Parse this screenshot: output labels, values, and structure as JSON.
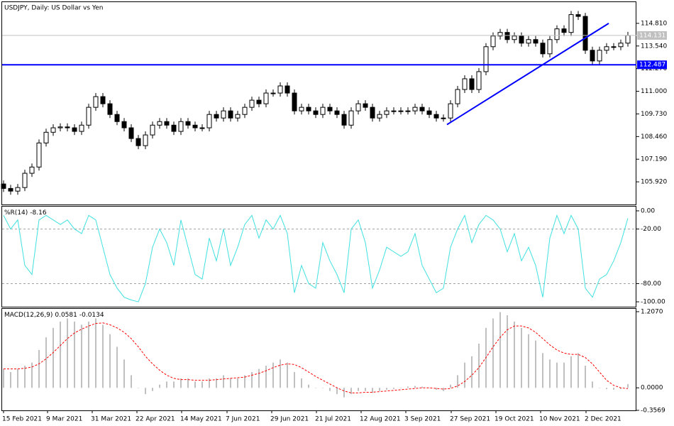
{
  "chart_data": [
    {
      "type": "candlestick",
      "title": "USDJPY, Daily:  US Dollar vs Yen",
      "open": [
        105.8,
        105.55,
        105.4,
        105.6,
        106.4,
        106.75,
        108.1,
        108.7,
        108.95,
        109.0,
        108.95,
        108.75,
        109.1,
        110.1,
        110.7,
        110.3,
        109.7,
        109.3,
        108.95,
        108.35,
        107.95,
        108.55,
        109.1,
        109.3,
        109.1,
        108.75,
        109.3,
        109.1,
        108.95,
        108.95,
        109.7,
        109.5,
        109.9,
        109.5,
        109.7,
        110.1,
        110.5,
        110.3,
        110.9,
        110.9,
        111.3,
        110.9,
        109.9,
        110.1,
        109.9,
        109.7,
        110.1,
        109.9,
        109.7,
        109.1,
        109.9,
        110.3,
        110.1,
        109.5,
        109.7,
        109.9,
        109.9,
        109.9,
        109.9,
        110.1,
        109.9,
        109.7,
        109.5,
        109.5,
        110.3,
        111.1,
        111.7,
        111.1,
        112.1,
        113.5,
        114.1,
        114.3,
        113.9,
        114.1,
        113.7,
        113.9,
        113.7,
        113.1,
        113.9,
        114.5,
        114.3,
        115.3,
        115.2,
        113.3,
        112.7,
        113.3,
        113.5,
        113.5,
        113.7
      ],
      "high": [
        106.0,
        105.75,
        105.8,
        106.6,
        106.95,
        108.3,
        108.9,
        109.15,
        109.2,
        109.2,
        109.15,
        109.3,
        110.3,
        110.9,
        110.9,
        110.5,
        109.9,
        109.5,
        109.15,
        108.55,
        108.75,
        109.3,
        109.5,
        109.5,
        109.3,
        109.5,
        109.5,
        109.3,
        109.15,
        109.9,
        109.9,
        110.1,
        110.1,
        109.9,
        110.3,
        110.7,
        110.7,
        111.1,
        111.1,
        111.5,
        111.5,
        111.1,
        110.3,
        110.3,
        110.1,
        110.3,
        110.3,
        110.1,
        109.9,
        110.1,
        110.5,
        110.5,
        110.3,
        109.9,
        110.1,
        110.1,
        110.1,
        110.1,
        110.3,
        110.3,
        110.1,
        109.9,
        109.7,
        110.5,
        111.3,
        111.9,
        111.9,
        112.3,
        113.7,
        114.3,
        114.5,
        114.5,
        114.3,
        114.3,
        114.1,
        114.1,
        113.9,
        114.1,
        114.7,
        114.7,
        115.5,
        115.5,
        115.4,
        113.5,
        113.5,
        113.7,
        113.7,
        113.9,
        114.33
      ],
      "low": [
        105.35,
        105.2,
        105.2,
        105.4,
        106.2,
        106.55,
        107.9,
        108.5,
        108.75,
        108.75,
        108.55,
        108.55,
        108.9,
        109.9,
        110.1,
        109.5,
        109.1,
        108.75,
        108.15,
        107.75,
        107.75,
        108.35,
        108.9,
        108.9,
        108.55,
        108.55,
        108.9,
        108.75,
        108.75,
        108.75,
        109.3,
        109.3,
        109.3,
        109.3,
        109.5,
        109.9,
        110.1,
        110.1,
        110.7,
        110.7,
        110.7,
        109.7,
        109.7,
        109.7,
        109.5,
        109.5,
        109.7,
        109.5,
        108.9,
        108.9,
        109.7,
        109.9,
        109.3,
        109.3,
        109.5,
        109.7,
        109.7,
        109.7,
        109.7,
        109.7,
        109.5,
        109.3,
        109.3,
        109.3,
        110.1,
        110.9,
        110.9,
        110.9,
        111.9,
        113.3,
        113.9,
        113.7,
        113.7,
        113.5,
        113.5,
        113.5,
        112.9,
        112.9,
        113.7,
        114.1,
        114.1,
        115.0,
        113.1,
        112.5,
        112.5,
        113.1,
        113.3,
        113.3,
        113.5
      ],
      "close": [
        105.55,
        105.4,
        105.6,
        106.4,
        106.75,
        108.1,
        108.7,
        108.95,
        109.0,
        108.95,
        108.75,
        109.1,
        110.1,
        110.7,
        110.3,
        109.7,
        109.3,
        108.95,
        108.35,
        107.95,
        108.55,
        109.1,
        109.3,
        109.1,
        108.75,
        109.3,
        109.1,
        108.95,
        108.95,
        109.7,
        109.5,
        109.9,
        109.5,
        109.7,
        110.1,
        110.5,
        110.3,
        110.9,
        110.9,
        111.3,
        110.9,
        109.9,
        110.1,
        109.9,
        109.7,
        110.1,
        109.9,
        109.7,
        109.1,
        109.9,
        110.3,
        110.1,
        109.5,
        109.7,
        109.9,
        109.9,
        109.9,
        109.9,
        110.1,
        109.9,
        109.7,
        109.5,
        109.5,
        110.3,
        111.1,
        111.7,
        111.1,
        112.1,
        113.5,
        114.1,
        114.3,
        113.9,
        114.1,
        113.7,
        113.9,
        113.7,
        113.1,
        113.9,
        114.5,
        114.3,
        115.3,
        115.2,
        113.3,
        112.7,
        113.3,
        113.5,
        113.5,
        113.7,
        114.13
      ],
      "ylim": [
        104.65,
        116.0
      ],
      "yticks": [
        {
          "value": 105.92,
          "label": "105.920"
        },
        {
          "value": 107.19,
          "label": "107.190"
        },
        {
          "value": 108.46,
          "label": "108.460"
        },
        {
          "value": 109.73,
          "label": "109.730"
        },
        {
          "value": 111.0,
          "label": "111.000"
        },
        {
          "value": 112.27,
          "label": "112.270"
        },
        {
          "value": 113.54,
          "label": "113.540"
        },
        {
          "value": 114.81,
          "label": "114.810"
        }
      ],
      "horizontal_line": {
        "value": 112.487,
        "color": "#0000ff"
      },
      "last_price": {
        "value": 114.131,
        "color": "#c0c0c0"
      },
      "trendline": {
        "from_index": 62.5,
        "to_index": 85.3,
        "from": 109.13,
        "to": 114.81,
        "color": "#0000ff"
      }
    },
    {
      "type": "line",
      "title": "%R(14)",
      "color": "#40e0e0",
      "values": [
        -5,
        -20,
        -10,
        -60,
        -70,
        -10,
        -5,
        -10,
        -15,
        -10,
        -20,
        -25,
        -5,
        -10,
        -40,
        -70,
        -85,
        -95,
        -98,
        -100,
        -80,
        -40,
        -20,
        -35,
        -60,
        -10,
        -40,
        -70,
        -75,
        -30,
        -55,
        -20,
        -60,
        -40,
        -15,
        -5,
        -30,
        -10,
        -20,
        -5,
        -25,
        -90,
        -60,
        -80,
        -85,
        -35,
        -55,
        -70,
        -90,
        -20,
        -10,
        -35,
        -85,
        -65,
        -40,
        -45,
        -50,
        -45,
        -25,
        -60,
        -75,
        -90,
        -85,
        -40,
        -20,
        -5,
        -35,
        -15,
        -5,
        -10,
        -20,
        -45,
        -25,
        -55,
        -40,
        -60,
        -95,
        -30,
        -5,
        -25,
        -5,
        -20,
        -85,
        -95,
        -75,
        -70,
        -55,
        -35,
        -8.16
      ],
      "ylim": [
        -105.4,
        4.65
      ],
      "yticks": [
        {
          "value": 0,
          "label": "0.00"
        },
        {
          "value": -20,
          "label": "-20.00"
        },
        {
          "value": -80,
          "label": "-80.00"
        },
        {
          "value": -100,
          "label": "-100.00"
        }
      ],
      "levels": [
        -20,
        -80
      ]
    },
    {
      "type": "bar",
      "title": "MACD(12,26,9)",
      "color": "#c0c0c0",
      "signal_color": "#ff0000",
      "values": [
        0.3,
        0.25,
        0.3,
        0.35,
        0.4,
        0.6,
        0.8,
        0.95,
        1.05,
        1.1,
        1.05,
        1.0,
        1.05,
        1.1,
        1.0,
        0.85,
        0.65,
        0.45,
        0.2,
        0.0,
        -0.1,
        -0.05,
        0.05,
        0.1,
        0.1,
        0.15,
        0.15,
        0.1,
        0.1,
        0.15,
        0.15,
        0.2,
        0.15,
        0.15,
        0.2,
        0.25,
        0.3,
        0.35,
        0.4,
        0.45,
        0.4,
        0.25,
        0.15,
        0.05,
        0.0,
        0.0,
        -0.05,
        -0.1,
        -0.15,
        -0.1,
        -0.05,
        -0.05,
        -0.08,
        -0.05,
        -0.03,
        -0.02,
        0.0,
        0.02,
        0.03,
        0.02,
        0.0,
        -0.03,
        -0.05,
        0.05,
        0.2,
        0.4,
        0.5,
        0.7,
        0.95,
        1.1,
        1.2,
        1.15,
        1.05,
        0.95,
        0.85,
        0.75,
        0.55,
        0.45,
        0.4,
        0.4,
        0.5,
        0.55,
        0.35,
        0.1,
        0.0,
        -0.02,
        -0.03,
        -0.02,
        0.0581
      ],
      "signal": [
        0.3,
        0.3,
        0.3,
        0.31,
        0.33,
        0.38,
        0.46,
        0.56,
        0.67,
        0.78,
        0.87,
        0.93,
        0.98,
        1.02,
        1.03,
        1.0,
        0.95,
        0.88,
        0.78,
        0.65,
        0.5,
        0.38,
        0.28,
        0.2,
        0.15,
        0.13,
        0.13,
        0.12,
        0.12,
        0.12,
        0.13,
        0.14,
        0.15,
        0.16,
        0.17,
        0.2,
        0.23,
        0.27,
        0.32,
        0.36,
        0.38,
        0.37,
        0.32,
        0.25,
        0.18,
        0.12,
        0.06,
        0.0,
        -0.05,
        -0.08,
        -0.08,
        -0.07,
        -0.07,
        -0.06,
        -0.05,
        -0.04,
        -0.03,
        -0.02,
        -0.01,
        0.0,
        0.0,
        -0.01,
        -0.02,
        -0.01,
        0.03,
        0.1,
        0.2,
        0.32,
        0.48,
        0.65,
        0.8,
        0.92,
        0.98,
        0.98,
        0.95,
        0.88,
        0.78,
        0.68,
        0.6,
        0.55,
        0.53,
        0.53,
        0.48,
        0.38,
        0.25,
        0.12,
        0.04,
        0.0,
        -0.0134
      ],
      "ylim": [
        -0.3575,
        1.252
      ],
      "yticks": [
        {
          "value": 1.207,
          "label": "1.2070"
        },
        {
          "value": 0,
          "label": "0.0000"
        },
        {
          "value": -0.3569,
          "label": "-0.3569"
        }
      ],
      "xticks": [
        {
          "value": 0,
          "label": "15 Feb 2021"
        },
        {
          "value": 6.2,
          "label": "9 Mar 2021"
        },
        {
          "value": 12.5,
          "label": "31 Mar 2021"
        },
        {
          "value": 18.8,
          "label": "22 Apr 2021"
        },
        {
          "value": 25.1,
          "label": "14 May 2021"
        },
        {
          "value": 31.5,
          "label": "7 Jun 2021"
        },
        {
          "value": 37.8,
          "label": "29 Jun 2021"
        },
        {
          "value": 44.1,
          "label": "21 Jul 2021"
        },
        {
          "value": 50.4,
          "label": "12 Aug 2021"
        },
        {
          "value": 56.7,
          "label": "3 Sep 2021"
        },
        {
          "value": 63.1,
          "label": "27 Sep 2021"
        },
        {
          "value": 69.4,
          "label": "19 Oct 2021"
        },
        {
          "value": 75.7,
          "label": "10 Nov 2021"
        },
        {
          "value": 82.1,
          "label": "2 Dec 2021"
        }
      ]
    }
  ]
}
